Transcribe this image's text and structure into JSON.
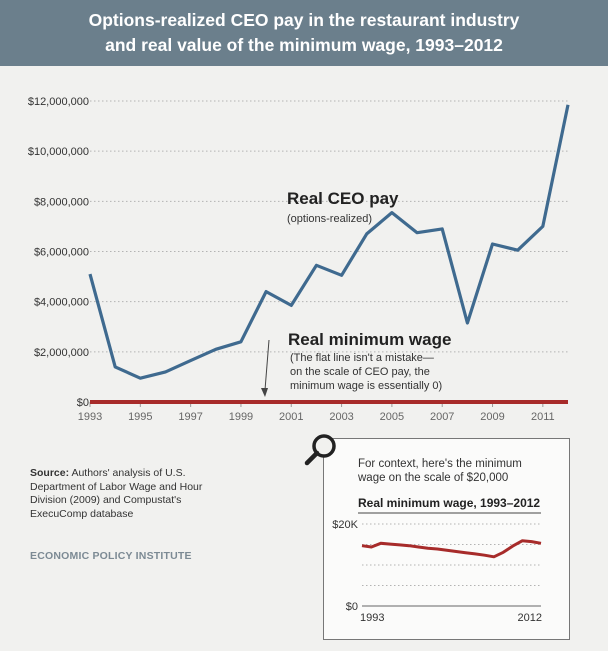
{
  "title": {
    "line1": "Options-realized CEO pay in the restaurant industry",
    "line2": "and real value of the minimum wage, 1993–2012"
  },
  "source": {
    "label": "Source:",
    "text": "Authors' analysis of U.S. Department of Labor Wage and Hour Division (2009) and Compustat's ExecuComp database"
  },
  "publisher": "ECONOMIC POLICY INSTITUTE",
  "chart_data": [
    {
      "type": "line",
      "title": "",
      "xlabel": "",
      "ylabel": "",
      "x": [
        1993,
        1994,
        1995,
        1996,
        1997,
        1998,
        1999,
        2000,
        2001,
        2002,
        2003,
        2004,
        2005,
        2006,
        2007,
        2008,
        2009,
        2010,
        2011,
        2012
      ],
      "x_ticks": [
        "1993",
        "1995",
        "1997",
        "1999",
        "2001",
        "2003",
        "2005",
        "2007",
        "2009",
        "2011"
      ],
      "xlim": [
        1993,
        2012
      ],
      "y_ticks": [
        "$0",
        "$2,000,000",
        "$4,000,000",
        "$6,000,000",
        "$8,000,000",
        "$10,000,000",
        "$12,000,000"
      ],
      "ylim": [
        0,
        12000000
      ],
      "grid": true,
      "series": [
        {
          "name": "Real CEO pay",
          "color": "#3f6a8f",
          "values": [
            5100000,
            1400000,
            950000,
            1200000,
            1650000,
            2100000,
            2400000,
            4400000,
            3850000,
            5450000,
            5050000,
            6700000,
            7550000,
            6750000,
            6900000,
            3150000,
            6300000,
            6050000,
            7000000,
            11850000
          ]
        },
        {
          "name": "Real minimum wage",
          "color": "#a72b2a",
          "values": [
            0,
            0,
            0,
            0,
            0,
            0,
            0,
            0,
            0,
            0,
            0,
            0,
            0,
            0,
            0,
            0,
            0,
            0,
            0,
            0
          ]
        }
      ],
      "annotations": {
        "ceo_label": "Real CEO pay",
        "ceo_sub": "(options-realized)",
        "wage_label": "Real minimum wage",
        "wage_note_lines": [
          "(The flat line isn't a mistake—",
          "on the scale of CEO pay, the",
          "minimum wage is essentially 0)"
        ]
      }
    },
    {
      "type": "line",
      "title": "Real minimum wage, 1993–2012",
      "context_lines": [
        "For context, here's the minimum",
        "wage on the scale of $20,000"
      ],
      "x": [
        1993,
        1994,
        1995,
        1996,
        1997,
        1998,
        1999,
        2000,
        2001,
        2002,
        2003,
        2004,
        2005,
        2006,
        2007,
        2008,
        2009,
        2010,
        2011,
        2012
      ],
      "x_ticks": [
        "1993",
        "2012"
      ],
      "xlim": [
        1993,
        2012
      ],
      "y_ticks": [
        "$0",
        "$20K"
      ],
      "ylim": [
        0,
        20000
      ],
      "grid": true,
      "series": [
        {
          "name": "Real minimum wage",
          "color": "#a72b2a",
          "values": [
            14700,
            14400,
            15300,
            15100,
            14900,
            14700,
            14400,
            14100,
            13900,
            13600,
            13300,
            13000,
            12700,
            12400,
            12000,
            13100,
            14600,
            15900,
            15700,
            15300
          ]
        }
      ]
    }
  ]
}
